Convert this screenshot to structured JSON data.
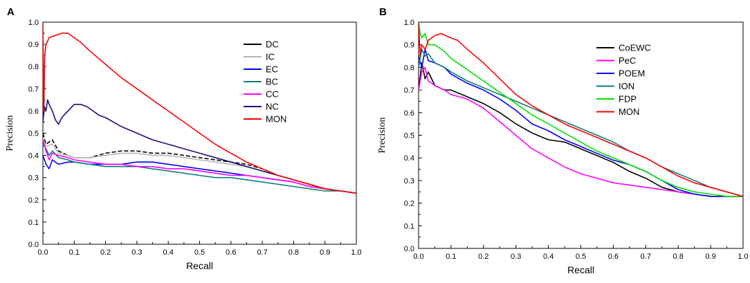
{
  "chart_data": [
    {
      "type": "line",
      "panel": "A",
      "xlabel": "Recall",
      "ylabel": "Precision",
      "xlim": [
        0,
        1.0
      ],
      "ylim": [
        0,
        1.0
      ],
      "xticks": [
        "0.0",
        "0.1",
        "0.2",
        "0.3",
        "0.4",
        "0.5",
        "0.6",
        "0.7",
        "0.8",
        "0.9",
        "1.0"
      ],
      "yticks": [
        "0.0",
        "0.1",
        "0.2",
        "0.3",
        "0.4",
        "0.5",
        "0.6",
        "0.7",
        "0.8",
        "0.9",
        "1.0"
      ],
      "legend_position": "upper-right",
      "series": [
        {
          "name": "DC",
          "color": "#000000",
          "dash": "6,3",
          "x": [
            0,
            0.01,
            0.03,
            0.05,
            0.08,
            0.1,
            0.15,
            0.2,
            0.25,
            0.3,
            0.35,
            0.4,
            0.45,
            0.5,
            0.55,
            0.6,
            0.65,
            0.7,
            0.75,
            0.8,
            0.85,
            0.9,
            0.95,
            1.0
          ],
          "y": [
            0.5,
            0.45,
            0.47,
            0.42,
            0.4,
            0.39,
            0.39,
            0.41,
            0.42,
            0.42,
            0.41,
            0.41,
            0.4,
            0.39,
            0.38,
            0.37,
            0.36,
            0.34,
            0.31,
            0.29,
            0.27,
            0.25,
            0.24,
            0.23
          ]
        },
        {
          "name": "IC",
          "color": "#b4b4b4",
          "dash": "",
          "x": [
            0,
            0.01,
            0.03,
            0.05,
            0.08,
            0.1,
            0.15,
            0.2,
            0.25,
            0.3,
            0.35,
            0.4,
            0.45,
            0.5,
            0.55,
            0.6,
            0.65,
            0.7,
            0.75,
            0.8,
            0.85,
            0.9,
            0.95,
            1.0
          ],
          "y": [
            0.48,
            0.44,
            0.45,
            0.41,
            0.4,
            0.39,
            0.39,
            0.4,
            0.41,
            0.41,
            0.4,
            0.4,
            0.39,
            0.38,
            0.37,
            0.36,
            0.35,
            0.33,
            0.31,
            0.29,
            0.27,
            0.25,
            0.24,
            0.23
          ]
        },
        {
          "name": "EC",
          "color": "#0000ff",
          "dash": "",
          "x": [
            0,
            0.01,
            0.02,
            0.03,
            0.05,
            0.08,
            0.1,
            0.15,
            0.2,
            0.25,
            0.3,
            0.35,
            0.4,
            0.45,
            0.5,
            0.55,
            0.6,
            0.65,
            0.7,
            0.75,
            0.8,
            0.85,
            0.9,
            0.95,
            1.0
          ],
          "y": [
            0.4,
            0.36,
            0.34,
            0.38,
            0.36,
            0.37,
            0.37,
            0.36,
            0.36,
            0.36,
            0.37,
            0.37,
            0.36,
            0.35,
            0.34,
            0.33,
            0.32,
            0.31,
            0.3,
            0.29,
            0.28,
            0.26,
            0.25,
            0.24,
            0.23
          ]
        },
        {
          "name": "BC",
          "color": "#0d7c7c",
          "dash": "",
          "x": [
            0,
            0.01,
            0.02,
            0.03,
            0.05,
            0.08,
            0.1,
            0.15,
            0.2,
            0.25,
            0.3,
            0.35,
            0.4,
            0.45,
            0.5,
            0.55,
            0.6,
            0.65,
            0.7,
            0.75,
            0.8,
            0.85,
            0.9,
            0.95,
            1.0
          ],
          "y": [
            0.45,
            0.43,
            0.4,
            0.42,
            0.39,
            0.38,
            0.37,
            0.36,
            0.35,
            0.35,
            0.35,
            0.34,
            0.33,
            0.32,
            0.31,
            0.3,
            0.3,
            0.29,
            0.28,
            0.27,
            0.26,
            0.25,
            0.24,
            0.24,
            0.23
          ]
        },
        {
          "name": "CC",
          "color": "#ff00ff",
          "dash": "",
          "x": [
            0,
            0.01,
            0.02,
            0.03,
            0.05,
            0.08,
            0.1,
            0.15,
            0.2,
            0.25,
            0.3,
            0.35,
            0.4,
            0.45,
            0.5,
            0.55,
            0.6,
            0.65,
            0.7,
            0.75,
            0.8,
            0.85,
            0.9,
            0.95,
            1.0
          ],
          "y": [
            0.47,
            0.42,
            0.38,
            0.41,
            0.4,
            0.39,
            0.38,
            0.37,
            0.36,
            0.36,
            0.35,
            0.35,
            0.34,
            0.34,
            0.33,
            0.32,
            0.31,
            0.31,
            0.3,
            0.29,
            0.28,
            0.26,
            0.25,
            0.24,
            0.23
          ]
        },
        {
          "name": "NC",
          "color": "#141478",
          "dash": "",
          "x": [
            0,
            0.005,
            0.01,
            0.015,
            0.02,
            0.03,
            0.04,
            0.05,
            0.06,
            0.08,
            0.1,
            0.12,
            0.14,
            0.16,
            0.18,
            0.2,
            0.25,
            0.3,
            0.35,
            0.4,
            0.45,
            0.5,
            0.55,
            0.6,
            0.65,
            0.7,
            0.75,
            0.8,
            0.85,
            0.9,
            0.95,
            1.0
          ],
          "y": [
            0.55,
            0.62,
            0.6,
            0.65,
            0.63,
            0.6,
            0.56,
            0.54,
            0.57,
            0.6,
            0.63,
            0.63,
            0.62,
            0.6,
            0.58,
            0.57,
            0.53,
            0.5,
            0.47,
            0.45,
            0.43,
            0.41,
            0.39,
            0.37,
            0.35,
            0.33,
            0.31,
            0.29,
            0.27,
            0.25,
            0.24,
            0.23
          ]
        },
        {
          "name": "MON",
          "color": "#ff0000",
          "dash": "",
          "x": [
            0,
            0.003,
            0.006,
            0.01,
            0.02,
            0.04,
            0.06,
            0.08,
            0.1,
            0.12,
            0.15,
            0.2,
            0.25,
            0.3,
            0.35,
            0.4,
            0.45,
            0.5,
            0.55,
            0.6,
            0.65,
            0.7,
            0.75,
            0.8,
            0.85,
            0.9,
            0.95,
            1.0
          ],
          "y": [
            1.0,
            0.6,
            0.85,
            0.9,
            0.93,
            0.94,
            0.95,
            0.95,
            0.93,
            0.91,
            0.87,
            0.81,
            0.75,
            0.7,
            0.65,
            0.6,
            0.55,
            0.5,
            0.45,
            0.41,
            0.37,
            0.34,
            0.31,
            0.29,
            0.27,
            0.25,
            0.24,
            0.23
          ]
        }
      ]
    },
    {
      "type": "line",
      "panel": "B",
      "xlabel": "Recall",
      "ylabel": "Precision",
      "xlim": [
        0,
        1.0
      ],
      "ylim": [
        0,
        1.0
      ],
      "xticks": [
        "0.0",
        "0.1",
        "0.2",
        "0.3",
        "0.4",
        "0.5",
        "0.6",
        "0.7",
        "0.8",
        "0.9",
        "1.0"
      ],
      "yticks": [
        "0.0",
        "0.1",
        "0.2",
        "0.3",
        "0.4",
        "0.5",
        "0.6",
        "0.7",
        "0.8",
        "0.9",
        "1.0"
      ],
      "legend_position": "upper-right",
      "series": [
        {
          "name": "CoEWC",
          "color": "#000000",
          "dash": "",
          "x": [
            0,
            0.01,
            0.02,
            0.03,
            0.05,
            0.08,
            0.1,
            0.15,
            0.2,
            0.25,
            0.3,
            0.35,
            0.4,
            0.45,
            0.5,
            0.55,
            0.6,
            0.65,
            0.7,
            0.75,
            0.8,
            0.85,
            0.9,
            0.95,
            1.0
          ],
          "y": [
            0.7,
            0.82,
            0.75,
            0.78,
            0.72,
            0.7,
            0.7,
            0.67,
            0.64,
            0.6,
            0.55,
            0.51,
            0.48,
            0.47,
            0.44,
            0.41,
            0.38,
            0.34,
            0.31,
            0.27,
            0.25,
            0.24,
            0.23,
            0.23,
            0.23
          ]
        },
        {
          "name": "PeC",
          "color": "#ff00ff",
          "dash": "",
          "x": [
            0,
            0.01,
            0.02,
            0.03,
            0.05,
            0.08,
            0.1,
            0.15,
            0.2,
            0.25,
            0.3,
            0.35,
            0.4,
            0.45,
            0.5,
            0.55,
            0.6,
            0.65,
            0.7,
            0.75,
            0.8,
            0.85,
            0.9,
            0.95,
            1.0
          ],
          "y": [
            0.7,
            0.78,
            0.8,
            0.74,
            0.72,
            0.7,
            0.68,
            0.66,
            0.62,
            0.56,
            0.5,
            0.44,
            0.4,
            0.36,
            0.33,
            0.31,
            0.29,
            0.28,
            0.27,
            0.26,
            0.25,
            0.24,
            0.23,
            0.23,
            0.23
          ]
        },
        {
          "name": "POEM",
          "color": "#0000ff",
          "dash": "",
          "x": [
            0,
            0.01,
            0.02,
            0.03,
            0.05,
            0.08,
            0.1,
            0.15,
            0.2,
            0.25,
            0.3,
            0.35,
            0.4,
            0.45,
            0.5,
            0.55,
            0.6,
            0.65,
            0.7,
            0.75,
            0.8,
            0.85,
            0.9,
            0.95,
            1.0
          ],
          "y": [
            0.85,
            0.8,
            0.88,
            0.83,
            0.82,
            0.8,
            0.77,
            0.73,
            0.7,
            0.66,
            0.61,
            0.55,
            0.52,
            0.48,
            0.45,
            0.42,
            0.39,
            0.37,
            0.34,
            0.3,
            0.26,
            0.24,
            0.23,
            0.23,
            0.23
          ]
        },
        {
          "name": "ION",
          "color": "#0d7c7c",
          "dash": "",
          "x": [
            0,
            0.01,
            0.02,
            0.03,
            0.05,
            0.08,
            0.1,
            0.15,
            0.2,
            0.25,
            0.3,
            0.35,
            0.4,
            0.45,
            0.5,
            0.55,
            0.6,
            0.65,
            0.7,
            0.75,
            0.8,
            0.85,
            0.9,
            0.95,
            1.0
          ],
          "y": [
            0.8,
            0.88,
            0.85,
            0.86,
            0.82,
            0.8,
            0.78,
            0.74,
            0.71,
            0.68,
            0.65,
            0.62,
            0.59,
            0.56,
            0.53,
            0.5,
            0.47,
            0.43,
            0.4,
            0.36,
            0.33,
            0.3,
            0.27,
            0.25,
            0.23
          ]
        },
        {
          "name": "FDP",
          "color": "#00e000",
          "dash": "",
          "x": [
            0,
            0.005,
            0.01,
            0.02,
            0.03,
            0.05,
            0.08,
            0.1,
            0.15,
            0.2,
            0.25,
            0.3,
            0.35,
            0.4,
            0.45,
            0.5,
            0.55,
            0.6,
            0.65,
            0.7,
            0.75,
            0.8,
            0.85,
            0.9,
            0.95,
            1.0
          ],
          "y": [
            1.0,
            0.95,
            0.93,
            0.95,
            0.9,
            0.9,
            0.87,
            0.84,
            0.79,
            0.74,
            0.69,
            0.64,
            0.59,
            0.55,
            0.51,
            0.47,
            0.43,
            0.4,
            0.37,
            0.34,
            0.3,
            0.27,
            0.25,
            0.24,
            0.23,
            0.23
          ]
        },
        {
          "name": "MON",
          "color": "#ff0000",
          "dash": "",
          "x": [
            0,
            0.005,
            0.01,
            0.02,
            0.03,
            0.05,
            0.07,
            0.1,
            0.12,
            0.15,
            0.2,
            0.25,
            0.3,
            0.35,
            0.4,
            0.45,
            0.5,
            0.55,
            0.6,
            0.65,
            0.7,
            0.75,
            0.8,
            0.85,
            0.9,
            0.95,
            1.0
          ],
          "y": [
            1.0,
            0.85,
            0.9,
            0.88,
            0.92,
            0.94,
            0.95,
            0.93,
            0.92,
            0.88,
            0.82,
            0.75,
            0.68,
            0.63,
            0.59,
            0.55,
            0.52,
            0.49,
            0.46,
            0.43,
            0.4,
            0.36,
            0.32,
            0.29,
            0.27,
            0.25,
            0.23
          ]
        }
      ]
    }
  ]
}
